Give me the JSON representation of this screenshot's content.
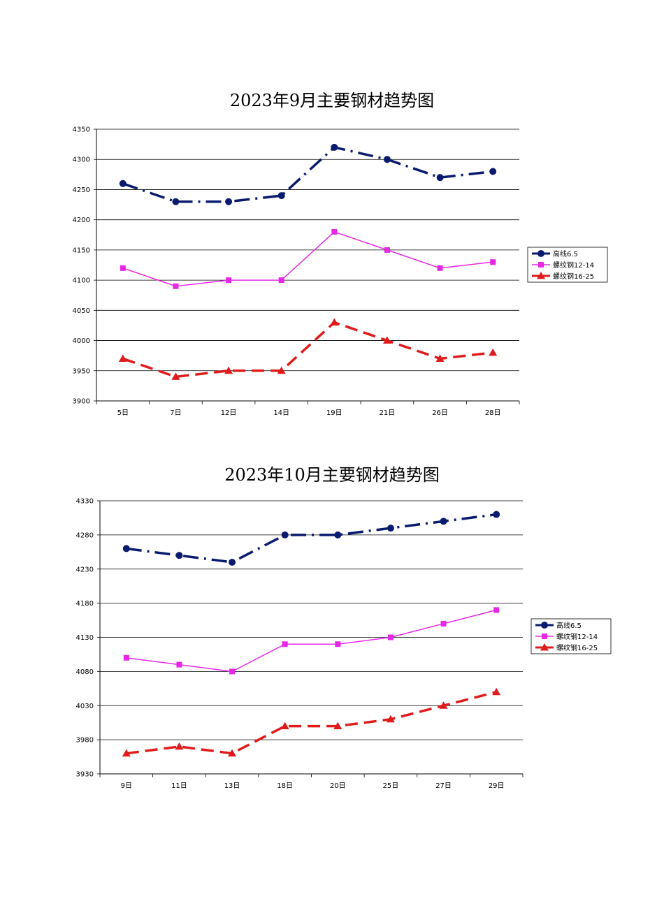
{
  "chart_data": [
    {
      "type": "line",
      "title": "2023年9月主要钢材趋势图",
      "categories": [
        "5日",
        "7日",
        "12日",
        "14日",
        "19日",
        "21日",
        "26日",
        "28日"
      ],
      "ylim": [
        3900,
        4350
      ],
      "yticks": [
        3900,
        3950,
        4000,
        4050,
        4100,
        4150,
        4200,
        4250,
        4300,
        4350
      ],
      "legend_position": "right",
      "series": [
        {
          "name": "高线6.5",
          "values": [
            4260,
            4230,
            4230,
            4240,
            4320,
            4300,
            4270,
            4280
          ],
          "color": "#0a1a6e",
          "marker": "circle",
          "dash": "dashdot"
        },
        {
          "name": "螺纹钢12-14",
          "values": [
            4120,
            4090,
            4100,
            4100,
            4180,
            4150,
            4120,
            4130
          ],
          "color": "#e628e6",
          "marker": "square",
          "dash": "solid"
        },
        {
          "name": "螺纹钢16-25",
          "values": [
            3970,
            3940,
            3950,
            3950,
            4030,
            4000,
            3970,
            3980
          ],
          "color": "#e01b1b",
          "marker": "triangle",
          "dash": "dash"
        }
      ]
    },
    {
      "type": "line",
      "title": "2023年10月主要钢材趋势图",
      "categories": [
        "9日",
        "11日",
        "13日",
        "18日",
        "20日",
        "25日",
        "27日",
        "29日"
      ],
      "ylim": [
        3930,
        4330
      ],
      "yticks": [
        3930,
        3980,
        4030,
        4080,
        4130,
        4180,
        4230,
        4280,
        4330
      ],
      "legend_position": "right",
      "series": [
        {
          "name": "高线6.5",
          "values": [
            4260,
            4250,
            4240,
            4280,
            4280,
            4290,
            4300,
            4310
          ],
          "color": "#0a1a6e",
          "marker": "circle",
          "dash": "dashdot"
        },
        {
          "name": "螺纹钢12-14",
          "values": [
            4100,
            4090,
            4080,
            4120,
            4120,
            4130,
            4150,
            4170
          ],
          "color": "#e628e6",
          "marker": "square",
          "dash": "solid"
        },
        {
          "name": "螺纹钢16-25",
          "values": [
            3960,
            3970,
            3960,
            4000,
            4000,
            4010,
            4030,
            4050
          ],
          "color": "#e01b1b",
          "marker": "triangle",
          "dash": "dash"
        }
      ]
    }
  ]
}
